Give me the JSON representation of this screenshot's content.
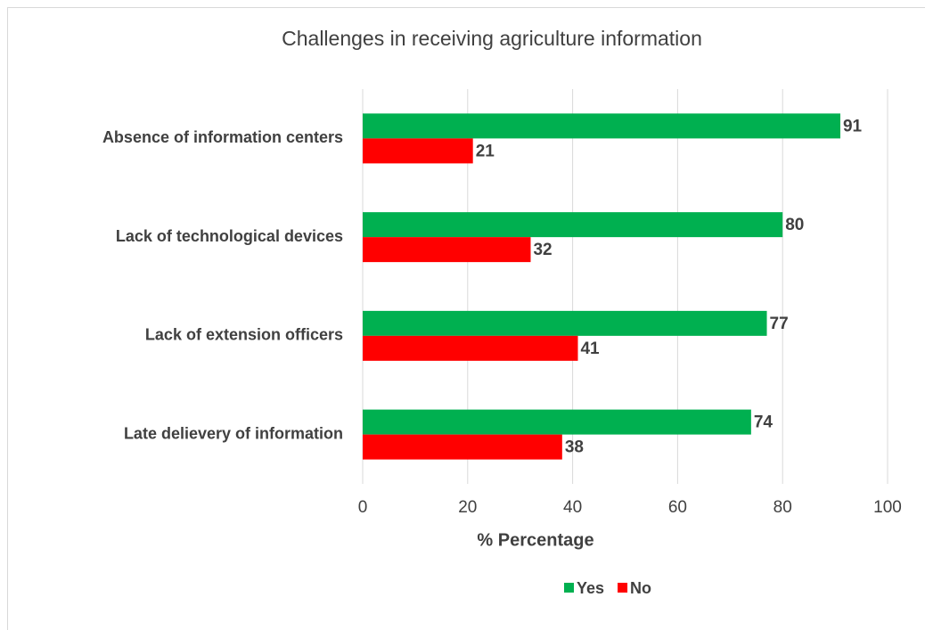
{
  "chart_data": {
    "type": "bar",
    "orientation": "horizontal",
    "title": "Challenges in receiving agriculture information",
    "categories": [
      "Absence of information centers",
      "Lack of technological devices",
      "Lack of extension officers",
      "Late delievery of information"
    ],
    "series": [
      {
        "name": "Yes",
        "color": "#00b050",
        "values": [
          91,
          80,
          77,
          74
        ]
      },
      {
        "name": "No",
        "color": "#ff0000",
        "values": [
          21,
          32,
          41,
          38
        ]
      }
    ],
    "x_label": "% Percentage",
    "xlim": [
      0,
      100
    ],
    "xticks": [
      0,
      20,
      40,
      60,
      80,
      100
    ],
    "grid": true,
    "legend": "bottom"
  }
}
